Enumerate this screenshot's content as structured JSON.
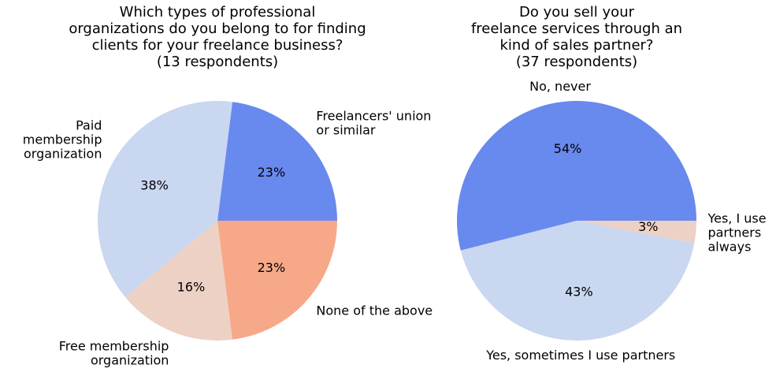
{
  "chart_data": [
    {
      "type": "pie",
      "title": [
        "Which types of professional",
        "organizations do you belong to for finding",
        "clients for your freelance business?",
        "(13 respondents)"
      ],
      "categories": [
        [
          "Freelancers' union",
          "or similar"
        ],
        [
          "Paid",
          "membership",
          "organization"
        ],
        [
          "Free membership",
          "organization"
        ],
        [
          "None of the above"
        ]
      ],
      "values": [
        23,
        38,
        16,
        23
      ],
      "value_labels": [
        "23%",
        "38%",
        "16%",
        "23%"
      ],
      "colors": [
        "#6889ee",
        "#c9d7f0",
        "#edd1c4",
        "#f6a889"
      ]
    },
    {
      "type": "pie",
      "title": [
        "Do you sell your",
        "freelance services through an",
        "kind of sales partner?",
        "(37 respondents)"
      ],
      "categories": [
        [
          "No, never"
        ],
        [
          "Yes, sometimes I use partners"
        ],
        [
          "Yes, I use",
          "partners",
          "always"
        ]
      ],
      "values": [
        54,
        43,
        3
      ],
      "value_labels": [
        "54%",
        "43%",
        "3%"
      ],
      "colors": [
        "#6889ee",
        "#c9d7f0",
        "#edd1c4"
      ]
    }
  ]
}
